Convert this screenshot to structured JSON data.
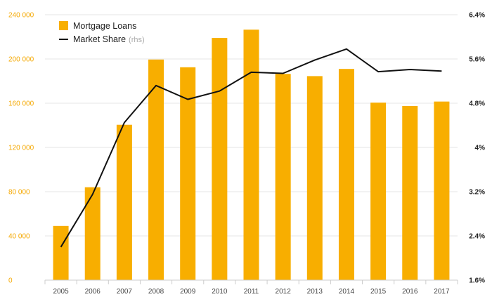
{
  "chart_data": {
    "type": "bar+line",
    "categories": [
      "2005",
      "2006",
      "2007",
      "2008",
      "2009",
      "2010",
      "2011",
      "2012",
      "2013",
      "2014",
      "2015",
      "2016",
      "2017"
    ],
    "series": [
      {
        "name": "Mortgage Loans",
        "type": "bar",
        "axis": "left",
        "color": "#f8ae00",
        "values": [
          49000,
          84000,
          140500,
          199500,
          192500,
          219000,
          226500,
          186500,
          184500,
          191000,
          160500,
          157500,
          161500
        ]
      },
      {
        "name": "Market Share",
        "name_suffix": "(rhs)",
        "type": "line",
        "axis": "right",
        "color": "#111111",
        "values": [
          2.2,
          3.15,
          4.45,
          5.12,
          4.87,
          5.02,
          5.36,
          5.34,
          5.58,
          5.78,
          5.37,
          5.41,
          5.38
        ]
      }
    ],
    "y_left": {
      "ylim": [
        0,
        240000
      ],
      "ticks": [
        0,
        40000,
        80000,
        120000,
        160000,
        200000,
        240000
      ],
      "tick_labels": [
        "0",
        "40 000",
        "80 000",
        "120 000",
        "160 000",
        "200 000",
        "240 000"
      ]
    },
    "y_right": {
      "ylim": [
        1.6,
        6.4
      ],
      "ticks": [
        1.6,
        2.4,
        3.2,
        4,
        4.8,
        5.6,
        6.4
      ],
      "tick_labels": [
        "1.6%",
        "2.4%",
        "3.2%",
        "4%",
        "4.8%",
        "5.6%",
        "6.4%"
      ]
    },
    "grid": true,
    "legend": "top-left",
    "title": "",
    "xlabel": "",
    "ylabel": ""
  }
}
